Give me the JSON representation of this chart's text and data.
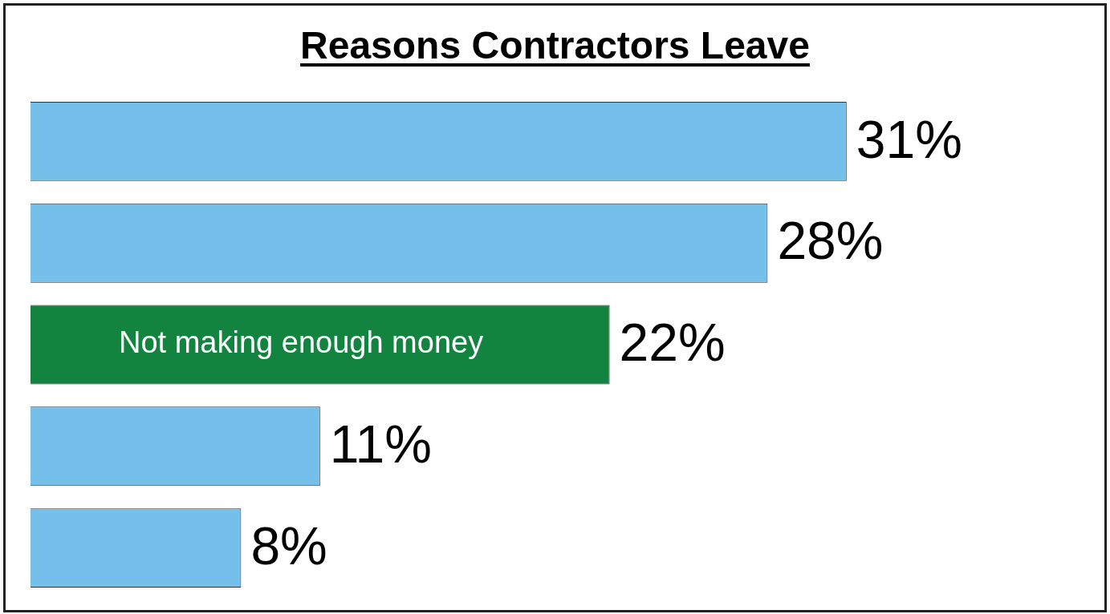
{
  "chart_data": {
    "type": "bar",
    "title": "Reasons Contractors Leave",
    "orientation": "horizontal",
    "categories": [
      null,
      null,
      "Not making enough money",
      null,
      null
    ],
    "values": [
      31,
      28,
      22,
      11,
      8
    ],
    "colors": [
      "#74c0ea",
      "#74c0ea",
      "#138440",
      "#74c0ea",
      "#74c0ea"
    ],
    "value_labels": [
      "31%",
      "28%",
      "22%",
      "11%",
      "8%"
    ]
  }
}
